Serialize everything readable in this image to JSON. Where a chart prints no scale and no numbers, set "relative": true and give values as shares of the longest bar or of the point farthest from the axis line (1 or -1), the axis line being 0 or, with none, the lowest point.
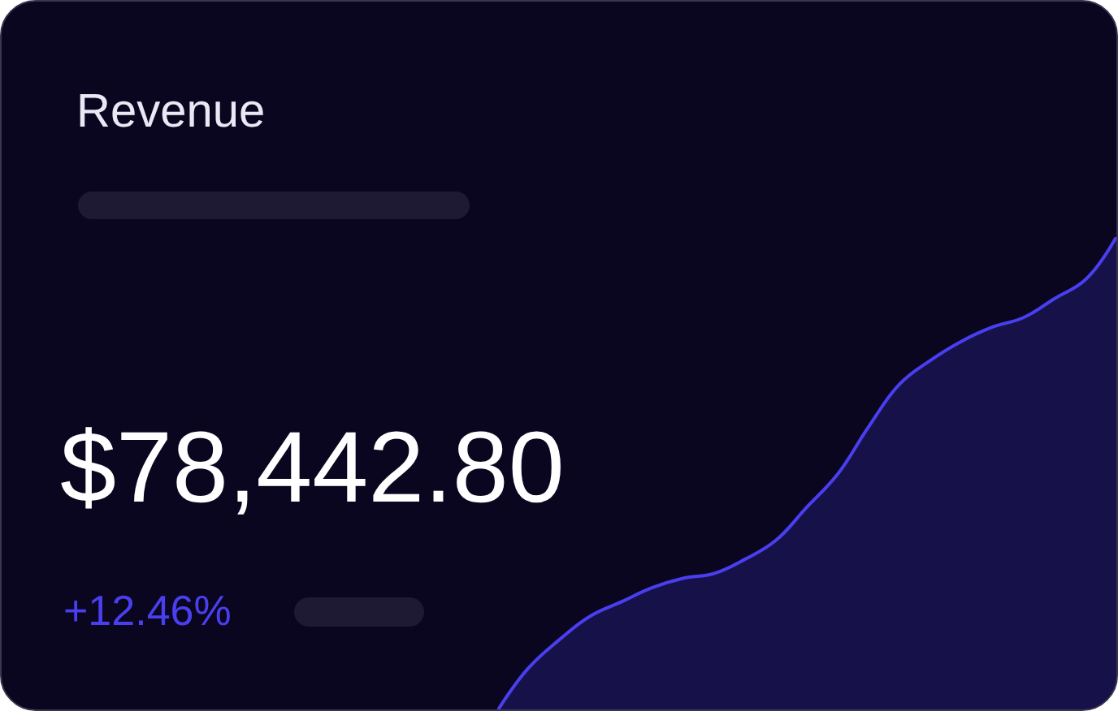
{
  "chart_data": {
    "type": "area",
    "title": "Revenue",
    "annotations": [
      "$78,442.80",
      "+12.46%"
    ],
    "categories": [
      null,
      null,
      null,
      null,
      null,
      null,
      null,
      null,
      null,
      null,
      null,
      null,
      null,
      null,
      null,
      null,
      null,
      null,
      null,
      null,
      null
    ],
    "values": [
      0,
      0.09,
      0.15,
      0.2,
      0.23,
      0.26,
      0.28,
      0.29,
      0.32,
      0.36,
      0.43,
      0.5,
      0.6,
      0.69,
      0.74,
      0.78,
      0.81,
      0.83,
      0.87,
      0.91,
      1
    ],
    "color": "#4a3ff0",
    "relative": true
  }
}
